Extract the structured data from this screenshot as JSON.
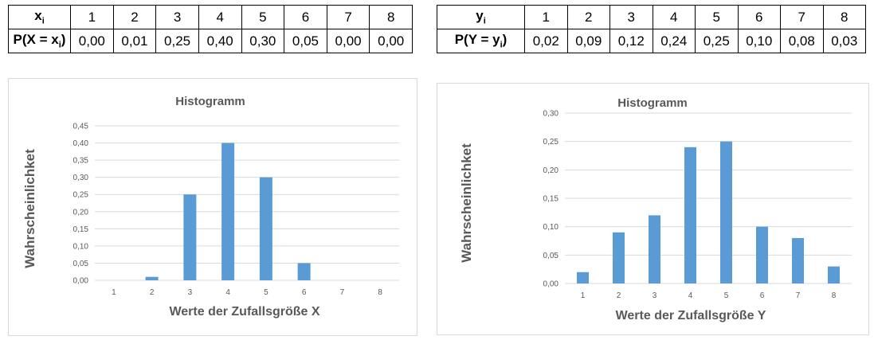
{
  "tables": [
    {
      "var_label": "x",
      "var_sub": "i",
      "prob_label_pre": "P(X = x",
      "prob_label_sub": "i",
      "prob_label_post": ")",
      "values": [
        "1",
        "2",
        "3",
        "4",
        "5",
        "6",
        "7",
        "8"
      ],
      "probs": [
        "0,00",
        "0,01",
        "0,25",
        "0,40",
        "0,30",
        "0,05",
        "0,00",
        "0,00"
      ]
    },
    {
      "var_label": "y",
      "var_sub": "i",
      "prob_label_pre": "P(Y = y",
      "prob_label_sub": "i",
      "prob_label_post": ")",
      "values": [
        "1",
        "2",
        "3",
        "4",
        "5",
        "6",
        "7",
        "8"
      ],
      "probs": [
        "0,02",
        "0,09",
        "0,12",
        "0,24",
        "0,25",
        "0,10",
        "0,08",
        "0,03"
      ]
    }
  ],
  "colors": {
    "bar": "#5b9bd5",
    "grid": "#d9d9d9",
    "text": "#595959"
  },
  "chart_data": [
    {
      "type": "bar",
      "title": "Histogramm",
      "xlabel": "Werte der Zufallsgröße X",
      "ylabel": "Wahrscheinlichket",
      "categories": [
        "1",
        "2",
        "3",
        "4",
        "5",
        "6",
        "7",
        "8"
      ],
      "values": [
        0.0,
        0.01,
        0.25,
        0.4,
        0.3,
        0.05,
        0.0,
        0.0
      ],
      "ylim": [
        0,
        0.45
      ],
      "yticks": [
        0,
        0.05,
        0.1,
        0.15,
        0.2,
        0.25,
        0.3,
        0.35,
        0.4,
        0.45
      ],
      "ytick_labels": [
        "0,00",
        "0,05",
        "0,10",
        "0,15",
        "0,20",
        "0,25",
        "0,30",
        "0,35",
        "0,40",
        "0,45"
      ],
      "grid": true
    },
    {
      "type": "bar",
      "title": "Histogramm",
      "xlabel": "Werte der Zufallsgröße Y",
      "ylabel": "Wahrscheinlichket",
      "categories": [
        "1",
        "2",
        "3",
        "4",
        "5",
        "6",
        "7",
        "8"
      ],
      "values": [
        0.02,
        0.09,
        0.12,
        0.24,
        0.25,
        0.1,
        0.08,
        0.03
      ],
      "ylim": [
        0,
        0.3
      ],
      "yticks": [
        0,
        0.05,
        0.1,
        0.15,
        0.2,
        0.25,
        0.3
      ],
      "ytick_labels": [
        "0,00",
        "0,05",
        "0,10",
        "0,15",
        "0,20",
        "0,25",
        "0,30"
      ],
      "grid": true
    }
  ]
}
